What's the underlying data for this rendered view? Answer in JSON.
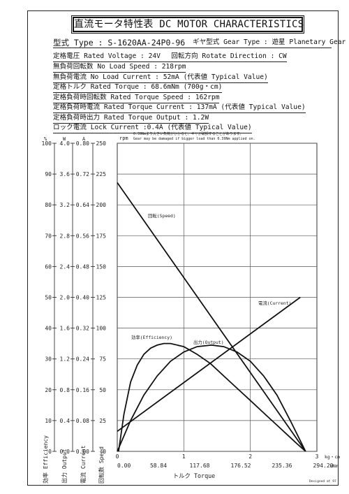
{
  "title": "直流モータ特性表 DC MOTOR CHARACTERISTICS",
  "model": {
    "label": "型式 Type : S-1620AA-24P0-96",
    "gear_type": "ギヤ型式 Gear Type : 遊星 Planetary Gear"
  },
  "specs": [
    "定格電圧 Rated Voltage : 24V　 回転方向 Rotate Direction : CW",
    "無負荷回転数 No Load Speed : 218rpm",
    "無負荷電流 No Load Current : 52mA (代表値 Typical Value)",
    "定格トルク Rated Torque : 68.6mNm (700g・cm)",
    "定格負荷時回転数 Rated Torque Speed : 162rpm",
    "定格負荷時電流 Rated Torque Current : 137mA (代表値 Typical Value)",
    "定格負荷時出力 Rated Torque Output : 1.2W",
    "ロック電流 Lock Current :0.4A (代表値 Typical Value)"
  ],
  "notes": [
    "0.39Nmより大きい負荷がかかると、ギヤが破損することがあります。",
    "Gear may be damaged if bigger load than 0.39Nm applied on."
  ],
  "footer": "Designed at 97",
  "colors": {
    "ink": "#111111",
    "grid": "#555555",
    "background": "#ffffff"
  },
  "chart_data": {
    "type": "line",
    "xlabel": "トルク Torque",
    "x_units": [
      "kg・cm",
      "mNm"
    ],
    "xlim": [
      0,
      3
    ],
    "x_ticks_kgcm": [
      0,
      1,
      2,
      3
    ],
    "x_ticks_mnm": [
      "0.00",
      "58.84",
      "117.68",
      "176.52",
      "235.36",
      "294.20"
    ],
    "axes": [
      {
        "unit": "%",
        "label": "効率 Efficiency",
        "ticks": [
          "100",
          "90",
          "80",
          "70",
          "60",
          "50",
          "40",
          "30",
          "20",
          "10",
          "0"
        ]
      },
      {
        "unit": "W",
        "label": "出力 Output",
        "ticks": [
          "4.0",
          "3.6",
          "3.2",
          "2.8",
          "2.4",
          "2.0",
          "1.6",
          "1.2",
          "0.8",
          "0.4",
          "0.0"
        ]
      },
      {
        "unit": "A",
        "label": "電流 Current",
        "ticks": [
          "0.80",
          "0.72",
          "0.64",
          "0.56",
          "0.48",
          "0.40",
          "0.32",
          "0.24",
          "0.16",
          "0.08",
          "0.00"
        ]
      },
      {
        "unit": "rpm",
        "label": "回転数 Speed",
        "ticks": [
          "250",
          "225",
          "200",
          "175",
          "150",
          "125",
          "100",
          "75",
          "50",
          "25",
          "0"
        ]
      }
    ],
    "series": [
      {
        "name": "回転(Speed)",
        "axis": "rpm",
        "x": [
          0,
          2.83
        ],
        "y": [
          218,
          0
        ]
      },
      {
        "name": "電流(Current)",
        "axis": "A",
        "x": [
          0,
          2.75
        ],
        "y": [
          0.052,
          0.4
        ]
      },
      {
        "name": "効率(Efficiency)",
        "axis": "%",
        "x": [
          0.02,
          0.1,
          0.2,
          0.3,
          0.4,
          0.5,
          0.6,
          0.7,
          0.8,
          1.0,
          1.2,
          1.4,
          1.6,
          1.8,
          2.0,
          2.2,
          2.4,
          2.6,
          2.7,
          2.83
        ],
        "y": [
          0,
          12,
          22.5,
          28,
          31.5,
          33.5,
          34.5,
          35,
          35,
          34,
          31.5,
          28.5,
          24.5,
          20.5,
          16.5,
          12.5,
          8.5,
          4.5,
          2.5,
          0
        ]
      },
      {
        "name": "出力(Output)",
        "axis": "W",
        "x": [
          0,
          0.2,
          0.4,
          0.6,
          0.8,
          1.0,
          1.2,
          1.415,
          1.6,
          1.8,
          2.0,
          2.2,
          2.4,
          2.6,
          2.83
        ],
        "y": [
          0,
          0.4,
          0.73,
          0.98,
          1.17,
          1.29,
          1.36,
          1.38,
          1.36,
          1.29,
          1.17,
          0.98,
          0.73,
          0.4,
          0
        ]
      }
    ]
  }
}
